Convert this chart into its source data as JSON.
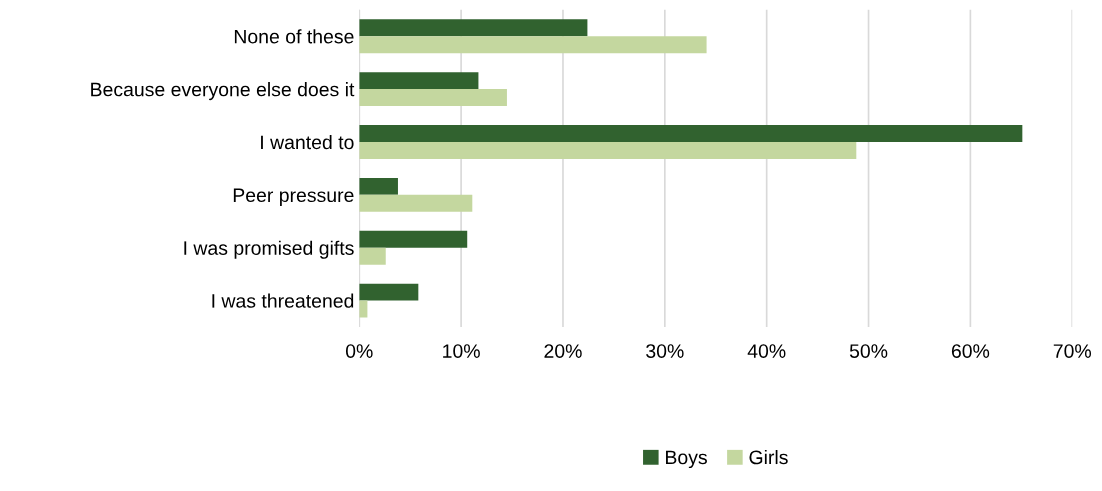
{
  "chart_data": {
    "type": "bar",
    "orientation": "horizontal",
    "categories": [
      "None of these",
      "Because everyone else does it",
      "I wanted to",
      "Peer pressure",
      "I was promised gifts",
      "I was threatened"
    ],
    "series": [
      {
        "name": "Boys",
        "color": "#31622f",
        "values": [
          22.4,
          11.7,
          65.1,
          3.8,
          10.6,
          5.8
        ]
      },
      {
        "name": "Girls",
        "color": "#c4d79f",
        "values": [
          34.1,
          14.5,
          48.8,
          11.1,
          2.6,
          0.8
        ]
      }
    ],
    "xlim": [
      0,
      70
    ],
    "xticks": [
      {
        "value": 0,
        "label": "0%"
      },
      {
        "value": 10,
        "label": "10%"
      },
      {
        "value": 20,
        "label": "20%"
      },
      {
        "value": 30,
        "label": "30%"
      },
      {
        "value": 40,
        "label": "40%"
      },
      {
        "value": 50,
        "label": "50%"
      },
      {
        "value": 60,
        "label": "60%"
      },
      {
        "value": 70,
        "label": "70%"
      }
    ],
    "grid": "x",
    "legend": "bottom"
  }
}
